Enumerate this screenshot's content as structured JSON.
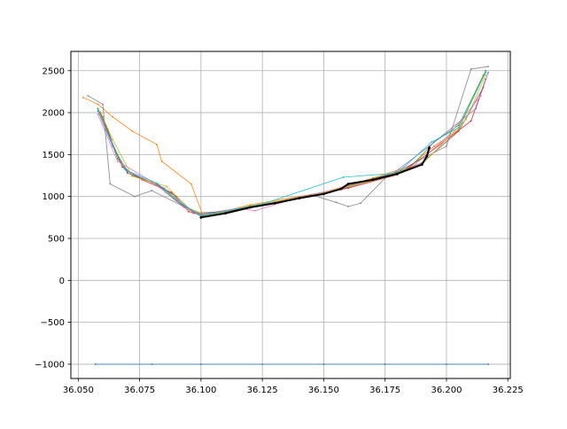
{
  "chart_data": {
    "type": "scatter",
    "title": "",
    "xlabel": "",
    "ylabel": "",
    "xlim": [
      36.047,
      36.226
    ],
    "ylim": [
      -1170,
      2730
    ],
    "grid": true,
    "legend": "none",
    "x_ticks": [
      36.05,
      36.075,
      36.1,
      36.125,
      36.15,
      36.175,
      36.2,
      36.225
    ],
    "x_tick_labels": [
      "36.050",
      "36.075",
      "36.100",
      "36.125",
      "36.150",
      "36.175",
      "36.200",
      "36.225"
    ],
    "y_ticks": [
      -1000,
      -500,
      0,
      500,
      1000,
      1500,
      2000,
      2500
    ],
    "y_tick_labels": [
      "−1000",
      "−500",
      "0",
      "500",
      "1000",
      "1500",
      "2000",
      "2500"
    ],
    "series": [
      {
        "color": "#1f77b4",
        "x": [
          36.057,
          36.08,
          36.1,
          36.125,
          36.15,
          36.175,
          36.2,
          36.217
        ],
        "y": [
          -1000,
          -1000,
          -1000,
          -1000,
          -1000,
          -1000,
          -1000,
          -1000
        ]
      },
      {
        "color": "#ff7f0e",
        "x": [
          36.052,
          36.058,
          36.064,
          36.072,
          36.082,
          36.084,
          36.096,
          36.101,
          36.12,
          36.15,
          36.17,
          36.185,
          36.195,
          36.205,
          36.215
        ],
        "y": [
          2180,
          2100,
          1950,
          1780,
          1620,
          1420,
          1150,
          760,
          900,
          1050,
          1220,
          1360,
          1600,
          1800,
          2450
        ]
      },
      {
        "color": "#2ca02c",
        "x": [
          36.058,
          36.062,
          36.066,
          36.072,
          36.082,
          36.09,
          36.1,
          36.125,
          36.15,
          36.17,
          36.185,
          36.195,
          36.205,
          36.216
        ],
        "y": [
          2050,
          1800,
          1450,
          1250,
          1150,
          950,
          760,
          900,
          1040,
          1210,
          1340,
          1650,
          1850,
          2500
        ]
      },
      {
        "color": "#d62728",
        "x": [
          36.059,
          36.063,
          36.068,
          36.076,
          36.088,
          36.095,
          36.102,
          36.12,
          36.14,
          36.16,
          36.18,
          36.192,
          36.21,
          36.216
        ],
        "y": [
          2000,
          1700,
          1350,
          1200,
          1050,
          820,
          760,
          880,
          980,
          1100,
          1260,
          1500,
          1900,
          2400
        ]
      },
      {
        "color": "#9467bd",
        "x": [
          36.058,
          36.064,
          36.07,
          36.085,
          36.092,
          36.1,
          36.118,
          36.135,
          36.155,
          36.178,
          36.193,
          36.212,
          36.217
        ],
        "y": [
          2020,
          1600,
          1300,
          1100,
          900,
          790,
          870,
          960,
          1080,
          1270,
          1600,
          2050,
          2480
        ]
      },
      {
        "color": "#8c564b",
        "x": [
          36.06,
          36.065,
          36.07,
          36.08,
          36.09,
          36.097,
          36.11,
          36.13,
          36.15,
          36.175,
          36.19,
          36.205,
          36.215
        ],
        "y": [
          1950,
          1550,
          1280,
          1170,
          1000,
          800,
          820,
          920,
          1030,
          1230,
          1400,
          1780,
          2300
        ]
      },
      {
        "color": "#e377c2",
        "x": [
          36.058,
          36.066,
          36.08,
          36.093,
          36.1,
          36.115,
          36.122,
          36.14,
          36.165,
          36.185,
          36.2,
          36.214
        ],
        "y": [
          1980,
          1420,
          1180,
          870,
          770,
          860,
          830,
          990,
          1150,
          1330,
          1700,
          2200
        ]
      },
      {
        "color": "#7f7f7f",
        "x": [
          36.054,
          36.06,
          36.063,
          36.073,
          36.08,
          36.1,
          36.125,
          36.145,
          36.155,
          36.16,
          36.165,
          36.175,
          36.2,
          36.21,
          36.217
        ],
        "y": [
          2200,
          2100,
          1150,
          1000,
          1070,
          780,
          900,
          1020,
          930,
          880,
          920,
          1220,
          1600,
          2520,
          2550
        ]
      },
      {
        "color": "#bcbd22",
        "x": [
          36.059,
          36.064,
          36.072,
          36.086,
          36.095,
          36.103,
          36.12,
          36.145,
          36.17,
          36.19,
          36.208,
          36.216
        ],
        "y": [
          2010,
          1680,
          1240,
          1120,
          860,
          770,
          890,
          1010,
          1190,
          1380,
          1920,
          2450
        ]
      },
      {
        "color": "#17becf",
        "x": [
          36.058,
          36.062,
          36.069,
          36.082,
          36.092,
          36.1,
          36.125,
          36.158,
          36.18,
          36.194,
          36.205,
          36.216
        ],
        "y": [
          2040,
          1750,
          1320,
          1160,
          920,
          770,
          910,
          1230,
          1280,
          1650,
          1820,
          2480
        ]
      },
      {
        "color": "#000000",
        "x": [
          36.1,
          36.11,
          36.12,
          36.13,
          36.14,
          36.15,
          36.157,
          36.16,
          36.17,
          36.18,
          36.19,
          36.192,
          36.193
        ],
        "y": [
          750,
          800,
          870,
          920,
          980,
          1030,
          1090,
          1150,
          1200,
          1270,
          1380,
          1480,
          1580
        ]
      }
    ]
  }
}
